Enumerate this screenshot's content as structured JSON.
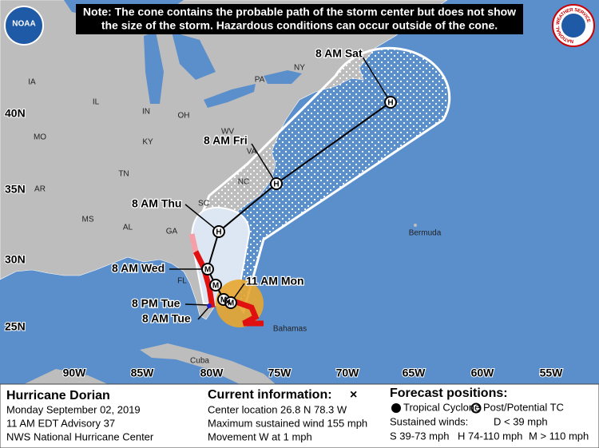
{
  "header": {
    "note": [
      "Note: The cone contains the probable path of the storm center but does not show",
      "the size of the storm. Hazardous conditions can occur outside of the cone."
    ]
  },
  "map": {
    "latitude_labels": [
      "40N",
      "35N",
      "30N",
      "25N"
    ],
    "longitude_labels": [
      "90W",
      "85W",
      "80W",
      "75W",
      "70W",
      "65W",
      "60W",
      "55W"
    ],
    "region_labels": [
      "IA",
      "IL",
      "IN",
      "OH",
      "MO",
      "KY",
      "WV",
      "VA",
      "AR",
      "TN",
      "NC",
      "MS",
      "AL",
      "GA",
      "SC",
      "FL",
      "PA",
      "NY",
      "Bermuda",
      "Bahamas",
      "Cuba"
    ],
    "forecast_times": [
      "8 AM Sat",
      "8 AM Fri",
      "8 AM Thu",
      "8 AM Wed",
      "11 AM Mon",
      "8 PM Tue",
      "8 AM Tue"
    ],
    "track_points": [
      "H",
      "H",
      "H",
      "M",
      "M",
      "M",
      "M"
    ],
    "logos": [
      "NOAA",
      "NATIONAL WEATHER SERVICE"
    ]
  },
  "footer": {
    "storm": {
      "name": "Hurricane Dorian",
      "date": "Monday September 02, 2019",
      "advisory": "11 AM EDT Advisory 37",
      "center": "NWS National Hurricane Center"
    },
    "current": {
      "title": "Current information:",
      "symbol": "×",
      "location": "Center location 26.8 N 78.3 W",
      "wind": "Maximum sustained wind 155 mph",
      "movement": "Movement W at 1 mph"
    },
    "legend": {
      "title": "Forecast positions:",
      "tropical": "Tropical Cyclone",
      "post": "Post/Potential TC",
      "winds_title": "Sustained winds:",
      "d": "D < 39 mph",
      "s": "S 39-73 mph",
      "h": "H 74-110 mph",
      "m": "M > 110 mph"
    }
  }
}
